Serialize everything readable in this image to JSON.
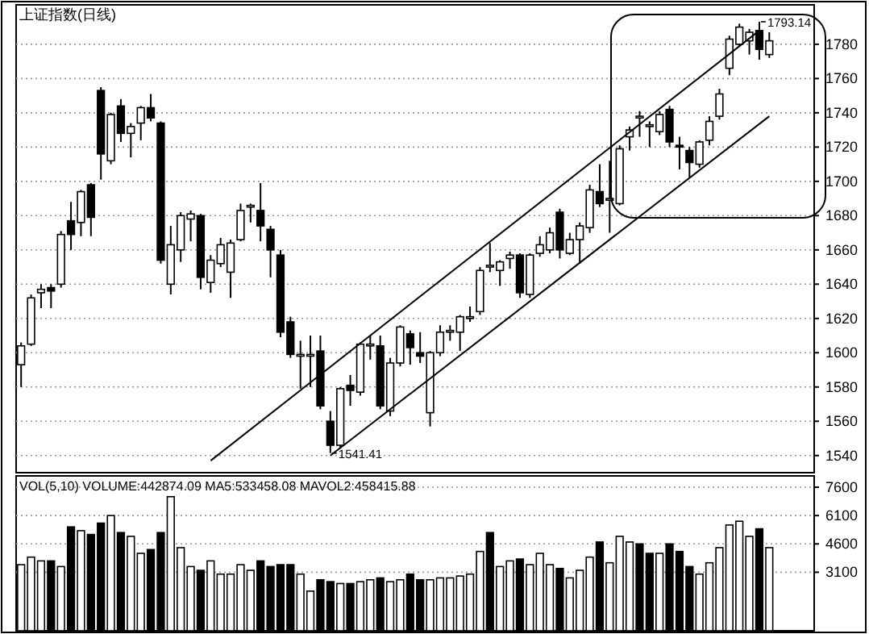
{
  "chart_data": [
    {
      "type": "candlestick",
      "title": "上证指数(日线)",
      "categories": [
        null,
        null,
        null,
        null,
        null,
        null,
        null,
        null,
        null,
        null,
        null,
        null,
        null,
        null,
        null,
        null,
        null,
        null,
        null,
        null,
        null,
        null,
        null,
        null,
        null,
        null,
        null,
        null,
        null,
        null,
        null,
        null,
        null,
        null,
        null,
        null,
        null,
        null,
        null,
        null,
        null,
        null,
        null,
        null,
        null,
        null,
        null,
        null,
        null,
        null,
        null,
        null,
        null,
        null,
        null,
        null,
        null,
        null,
        null,
        null,
        null,
        null,
        null,
        null,
        null,
        null,
        null,
        null,
        null,
        null,
        null,
        null,
        null,
        null,
        null,
        null
      ],
      "ohlc": [
        [
          1593,
          1606,
          1580,
          1604
        ],
        [
          1605,
          1634,
          1604,
          1632
        ],
        [
          1635,
          1640,
          1626,
          1637
        ],
        [
          1638,
          1640,
          1626,
          1636
        ],
        [
          1640,
          1671,
          1638,
          1669
        ],
        [
          1677,
          1688,
          1660,
          1669
        ],
        [
          1676,
          1695,
          1668,
          1694
        ],
        [
          1698,
          1699,
          1668,
          1679
        ],
        [
          1753,
          1755,
          1701,
          1716
        ],
        [
          1712,
          1740,
          1710,
          1739
        ],
        [
          1744,
          1748,
          1723,
          1728
        ],
        [
          1728,
          1734,
          1714,
          1732
        ],
        [
          1734,
          1744,
          1724,
          1743
        ],
        [
          1743,
          1751,
          1735,
          1737
        ],
        [
          1734,
          1735,
          1652,
          1654
        ],
        [
          1640,
          1674,
          1634,
          1663
        ],
        [
          1660,
          1682,
          1653,
          1680
        ],
        [
          1678,
          1683,
          1665,
          1681
        ],
        [
          1680,
          1681,
          1637,
          1644
        ],
        [
          1641,
          1657,
          1635,
          1654
        ],
        [
          1652,
          1667,
          1650,
          1663
        ],
        [
          1647,
          1666,
          1632,
          1664
        ],
        [
          1666,
          1687,
          1665,
          1683
        ],
        [
          1685,
          1687,
          1676,
          1686
        ],
        [
          1683,
          1699,
          1665,
          1674
        ],
        [
          1672,
          1674,
          1644,
          1660
        ],
        [
          1657,
          1660,
          1609,
          1612
        ],
        [
          1618,
          1621,
          1597,
          1599
        ],
        [
          1598,
          1607,
          1579,
          1599
        ],
        [
          1598,
          1610,
          1580,
          1599
        ],
        [
          1601,
          1610,
          1567,
          1569
        ],
        [
          1560,
          1566,
          1541.41,
          1546
        ],
        [
          1546,
          1580,
          1544,
          1579
        ],
        [
          1581,
          1587,
          1569,
          1578
        ],
        [
          1577,
          1606,
          1575,
          1605
        ],
        [
          1604,
          1610,
          1596,
          1605
        ],
        [
          1604,
          1610,
          1567,
          1569
        ],
        [
          1566,
          1597,
          1563,
          1594
        ],
        [
          1594,
          1616,
          1592,
          1615
        ],
        [
          1611,
          1613,
          1593,
          1603
        ],
        [
          1600,
          1612,
          1594,
          1598
        ],
        [
          1565,
          1601,
          1557,
          1600
        ],
        [
          1600,
          1616,
          1598,
          1612
        ],
        [
          1612,
          1616,
          1607,
          1613
        ],
        [
          1612,
          1622,
          1601,
          1621
        ],
        [
          1620,
          1627,
          1618,
          1621
        ],
        [
          1624,
          1650,
          1622,
          1648
        ],
        [
          1650,
          1664,
          1647,
          1651
        ],
        [
          1648,
          1654,
          1639,
          1653
        ],
        [
          1655,
          1659,
          1649,
          1657
        ],
        [
          1657,
          1658,
          1632,
          1635
        ],
        [
          1634,
          1658,
          1632,
          1657
        ],
        [
          1658,
          1668,
          1656,
          1663
        ],
        [
          1660,
          1673,
          1658,
          1670
        ],
        [
          1682,
          1684,
          1655,
          1660
        ],
        [
          1658,
          1670,
          1657,
          1666
        ],
        [
          1666,
          1676,
          1652,
          1674
        ],
        [
          1673,
          1698,
          1670,
          1695
        ],
        [
          1694,
          1710,
          1685,
          1687
        ],
        [
          1689,
          1712,
          1670,
          1690
        ],
        [
          1687,
          1721,
          1686,
          1719
        ],
        [
          1726,
          1732,
          1718,
          1730
        ],
        [
          1737,
          1741,
          1726,
          1738
        ],
        [
          1732,
          1735,
          1720,
          1733
        ],
        [
          1729,
          1741,
          1727,
          1739
        ],
        [
          1742,
          1744,
          1720,
          1723
        ],
        [
          1721,
          1726,
          1707,
          1720
        ],
        [
          1718,
          1720,
          1702,
          1711
        ],
        [
          1710,
          1724,
          1708,
          1723
        ],
        [
          1724,
          1738,
          1721,
          1735
        ],
        [
          1738,
          1754,
          1736,
          1751
        ],
        [
          1766,
          1785,
          1762,
          1783
        ],
        [
          1780,
          1792,
          1779,
          1790
        ],
        [
          1782,
          1789,
          1774,
          1787
        ],
        [
          1788,
          1793.14,
          1771,
          1777
        ],
        [
          1774,
          1787,
          1772,
          1782
        ]
      ],
      "series": [
        {
          "type": "line",
          "values": [
            null,
            null,
            null,
            null,
            null,
            null,
            null,
            null,
            null,
            null,
            null,
            null,
            null,
            null,
            null,
            null,
            null,
            null,
            null,
            1537,
            null,
            null,
            null,
            null,
            null,
            null,
            null,
            null,
            null,
            null,
            null,
            null,
            null,
            null,
            null,
            null,
            null,
            null,
            null,
            null,
            null,
            null,
            null,
            null,
            null,
            null,
            null,
            null,
            null,
            null,
            null,
            null,
            null,
            null,
            null,
            null,
            null,
            null,
            null,
            null,
            null,
            null,
            null,
            null,
            null,
            null,
            null,
            null,
            null,
            null,
            null,
            null,
            null,
            null,
            1788,
            null
          ],
          "color": "#000000"
        },
        {
          "type": "line",
          "values": [
            null,
            null,
            null,
            null,
            null,
            null,
            null,
            null,
            null,
            null,
            null,
            null,
            null,
            null,
            null,
            null,
            null,
            null,
            null,
            null,
            null,
            null,
            null,
            null,
            null,
            null,
            null,
            null,
            null,
            null,
            null,
            1540,
            null,
            null,
            null,
            null,
            null,
            null,
            null,
            null,
            null,
            null,
            null,
            null,
            null,
            null,
            null,
            null,
            null,
            null,
            null,
            null,
            null,
            null,
            null,
            null,
            null,
            null,
            null,
            null,
            null,
            null,
            null,
            null,
            null,
            null,
            null,
            null,
            null,
            null,
            null,
            null,
            null,
            null,
            null,
            1738
          ],
          "color": "#000000"
        }
      ],
      "ylim": [
        1530,
        1803
      ],
      "yticks": [
        1540,
        1560,
        1580,
        1600,
        1620,
        1640,
        1660,
        1680,
        1700,
        1720,
        1740,
        1760,
        1780
      ],
      "grid": "y",
      "annotations": [
        "1541.41",
        "1793.14"
      ]
    },
    {
      "type": "bar",
      "categories": [
        null,
        null,
        null,
        null,
        null,
        null,
        null,
        null,
        null,
        null,
        null,
        null,
        null,
        null,
        null,
        null,
        null,
        null,
        null,
        null,
        null,
        null,
        null,
        null,
        null,
        null,
        null,
        null,
        null,
        null,
        null,
        null,
        null,
        null,
        null,
        null,
        null,
        null,
        null,
        null,
        null,
        null,
        null,
        null,
        null,
        null,
        null,
        null,
        null,
        null,
        null,
        null,
        null,
        null,
        null,
        null,
        null,
        null,
        null,
        null,
        null,
        null,
        null,
        null,
        null,
        null,
        null,
        null,
        null,
        null,
        null,
        null,
        null,
        null,
        null,
        null
      ],
      "values": [
        3500,
        3900,
        3700,
        3700,
        3400,
        5500,
        5300,
        5100,
        5700,
        6100,
        5200,
        5000,
        4100,
        4300,
        5200,
        7100,
        4400,
        3400,
        3200,
        3700,
        3000,
        3000,
        3500,
        3200,
        3700,
        3400,
        3500,
        3500,
        3000,
        2100,
        2700,
        2600,
        2500,
        2500,
        2600,
        2700,
        2800,
        2600,
        2700,
        3000,
        2700,
        2700,
        2800,
        2800,
        2900,
        3000,
        4200,
        5200,
        3400,
        3700,
        3800,
        3500,
        4100,
        3500,
        3300,
        2800,
        3200,
        3900,
        4700,
        3600,
        5000,
        4700,
        4600,
        4100,
        4100,
        4600,
        4200,
        3400,
        3000,
        3600,
        4400,
        5600,
        5800,
        5000,
        5400,
        4400
      ],
      "colors": [
        "#ffffff",
        "#ffffff",
        "#ffffff",
        "#000000",
        "#ffffff",
        "#000000",
        "#ffffff",
        "#000000",
        "#000000",
        "#ffffff",
        "#000000",
        "#ffffff",
        "#ffffff",
        "#000000",
        "#000000",
        "#ffffff",
        "#ffffff",
        "#ffffff",
        "#000000",
        "#ffffff",
        "#ffffff",
        "#ffffff",
        "#ffffff",
        "#ffffff",
        "#000000",
        "#000000",
        "#000000",
        "#000000",
        "#ffffff",
        "#ffffff",
        "#000000",
        "#000000",
        "#ffffff",
        "#000000",
        "#ffffff",
        "#ffffff",
        "#000000",
        "#ffffff",
        "#ffffff",
        "#000000",
        "#000000",
        "#ffffff",
        "#ffffff",
        "#ffffff",
        "#ffffff",
        "#ffffff",
        "#ffffff",
        "#000000",
        "#ffffff",
        "#ffffff",
        "#000000",
        "#ffffff",
        "#ffffff",
        "#ffffff",
        "#000000",
        "#ffffff",
        "#ffffff",
        "#ffffff",
        "#000000",
        "#ffffff",
        "#ffffff",
        "#ffffff",
        "#000000",
        "#000000",
        "#ffffff",
        "#000000",
        "#000000",
        "#000000",
        "#ffffff",
        "#ffffff",
        "#ffffff",
        "#ffffff",
        "#ffffff",
        "#ffffff",
        "#000000",
        "#ffffff"
      ],
      "ylim": [
        0,
        8200
      ],
      "yticks": [
        3100,
        4600,
        6100,
        7600
      ],
      "grid": "y",
      "annotations": [
        "VOL(5,10) VOLUME:442874.09 MA5:533458.08 MAVOL2:458415.88"
      ]
    }
  ]
}
